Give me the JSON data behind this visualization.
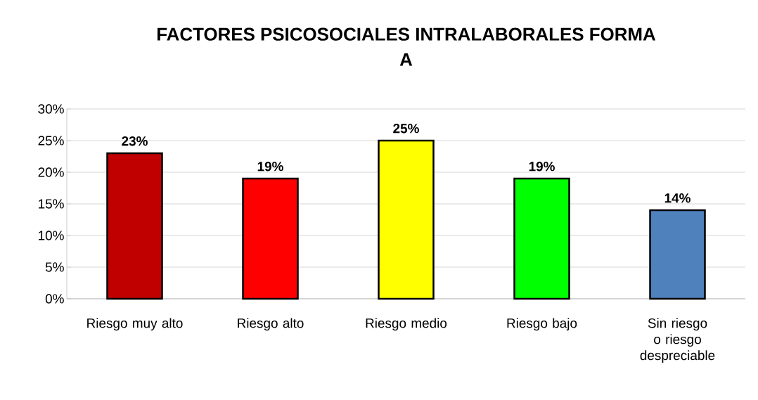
{
  "chart_data": {
    "type": "bar",
    "title": "FACTORES PSICOSOCIALES INTRALABORALES FORMA A",
    "categories": [
      "Riesgo muy alto",
      "Riesgo alto",
      "Riesgo medio",
      "Riesgo bajo",
      "Sin riesgo o riesgo despreciable"
    ],
    "values": [
      23,
      19,
      25,
      19,
      14
    ],
    "value_labels": [
      "23%",
      "19%",
      "25%",
      "19%",
      "14%"
    ],
    "colors": [
      "#c00000",
      "#ff0000",
      "#ffff00",
      "#00ff00",
      "#4f81bd"
    ],
    "ylim": [
      0,
      30
    ],
    "yticks": [
      {
        "value": 0,
        "label": "0%"
      },
      {
        "value": 5,
        "label": "5%"
      },
      {
        "value": 10,
        "label": "10%"
      },
      {
        "value": 15,
        "label": "15%"
      },
      {
        "value": 20,
        "label": "20%"
      },
      {
        "value": 25,
        "label": "25%"
      },
      {
        "value": 30,
        "label": "30%"
      }
    ],
    "grid": "y"
  }
}
